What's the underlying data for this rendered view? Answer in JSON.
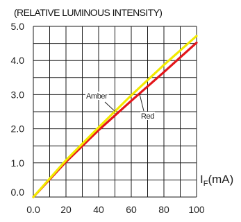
{
  "chart_data": {
    "type": "line",
    "title": "(RELATIVE LUMINOUS INTENSITY)",
    "xlabel": {
      "main": "I",
      "sub": "F",
      "rest": "(mA)"
    },
    "ylabel": "",
    "xlim": [
      0,
      100
    ],
    "ylim": [
      0,
      5
    ],
    "xticks": [
      "0.0",
      "20",
      "40",
      "60",
      "80",
      "100"
    ],
    "xtick_values": [
      0,
      20,
      40,
      60,
      80,
      100
    ],
    "yticks": [
      "0.0",
      "1.0",
      "2.0",
      "3.0",
      "4.0",
      "5.0"
    ],
    "ytick_values": [
      0,
      1,
      2,
      3,
      4,
      5
    ],
    "grid": {
      "x_step": 10,
      "y_step": 0.5
    },
    "series": [
      {
        "name": "Amber",
        "color": "#f2ea00",
        "points": [
          [
            0,
            0
          ],
          [
            20,
            1.08
          ],
          [
            40,
            2.04
          ],
          [
            60,
            2.98
          ],
          [
            80,
            3.87
          ],
          [
            100,
            4.72
          ]
        ]
      },
      {
        "name": "Red",
        "color": "#e3161a",
        "points": [
          [
            0,
            0
          ],
          [
            20,
            1.03
          ],
          [
            40,
            1.96
          ],
          [
            60,
            2.82
          ],
          [
            80,
            3.66
          ],
          [
            100,
            4.52
          ]
        ]
      }
    ],
    "annotations": [
      {
        "text": "Amber",
        "series": "Amber",
        "at_x": 50
      },
      {
        "text": "Red",
        "series": "Red",
        "at_x": 65
      }
    ]
  }
}
